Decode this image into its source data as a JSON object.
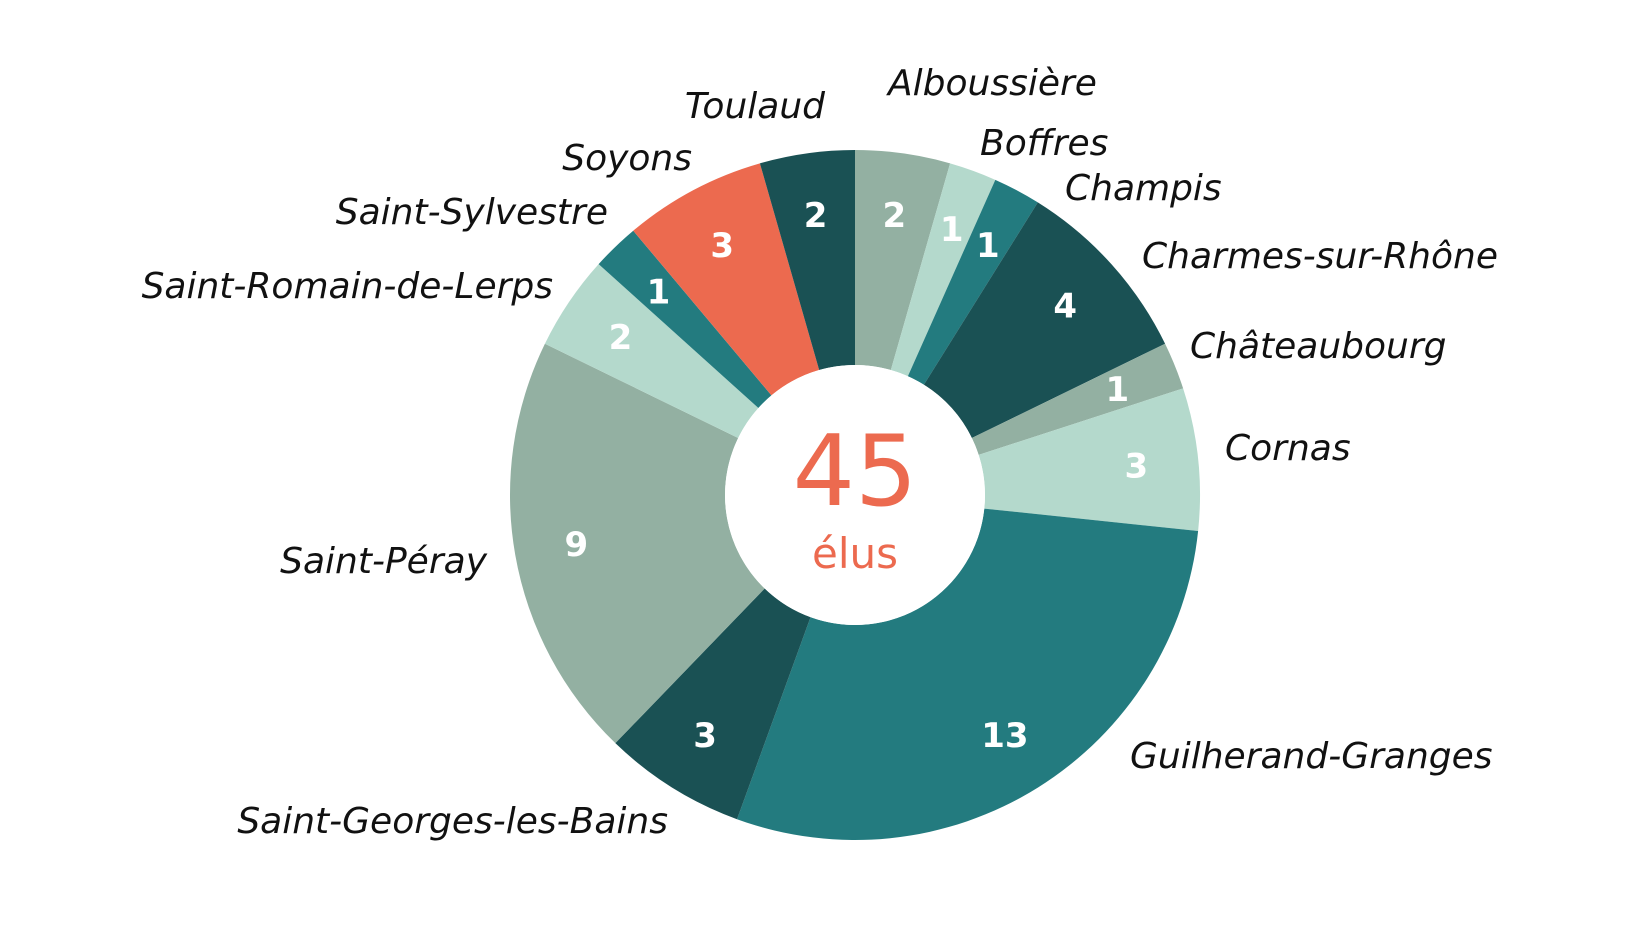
{
  "chart_data": {
    "type": "pie",
    "donut": true,
    "center": {
      "value": "45",
      "label": "élus"
    },
    "slices": [
      {
        "category": "Alboussière",
        "value": 2,
        "color": "#93b0a2",
        "label_color": "#ffffff"
      },
      {
        "category": "Boffres",
        "value": 1,
        "color": "#b4d9cc",
        "label_color": "#ffffff"
      },
      {
        "category": "Champis",
        "value": 1,
        "color": "#237b7f",
        "label_color": "#ffffff"
      },
      {
        "category": "Charmes-sur-Rhône",
        "value": 4,
        "color": "#1a5154",
        "label_color": "#ffffff"
      },
      {
        "category": "Châteaubourg",
        "value": 1,
        "color": "#93b0a2",
        "label_color": "#ffffff"
      },
      {
        "category": "Cornas",
        "value": 3,
        "color": "#b4d9cc",
        "label_color": "#ffffff"
      },
      {
        "category": "Guilherand-Granges",
        "value": 13,
        "color": "#237b7f",
        "label_color": "#ffffff"
      },
      {
        "category": "Saint-Georges-les-Bains",
        "value": 3,
        "color": "#1a5154",
        "label_color": "#ffffff"
      },
      {
        "category": "Saint-Péray",
        "value": 9,
        "color": "#93b0a2",
        "label_color": "#ffffff"
      },
      {
        "category": "Saint-Romain-de-Lerps",
        "value": 2,
        "color": "#b4d9cc",
        "label_color": "#ffffff"
      },
      {
        "category": "Saint-Sylvestre",
        "value": 1,
        "color": "#237b7f",
        "label_color": "#ffffff"
      },
      {
        "category": "Soyons",
        "value": 3,
        "color": "#ec6a4f",
        "label_color": "#ffffff"
      },
      {
        "category": "Toulaud",
        "value": 2,
        "color": "#1a5154",
        "label_color": "#ffffff"
      }
    ]
  }
}
